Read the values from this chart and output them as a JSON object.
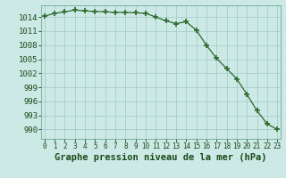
{
  "x": [
    0,
    1,
    2,
    3,
    4,
    5,
    6,
    7,
    8,
    9,
    10,
    11,
    12,
    13,
    14,
    15,
    16,
    17,
    18,
    19,
    20,
    21,
    22,
    23
  ],
  "y": [
    1014.2,
    1014.8,
    1015.1,
    1015.5,
    1015.3,
    1015.2,
    1015.1,
    1015.0,
    1015.0,
    1014.9,
    1014.8,
    1014.0,
    1013.2,
    1012.6,
    1013.0,
    1011.2,
    1008.0,
    1005.2,
    1003.0,
    1000.8,
    997.5,
    994.0,
    991.2,
    990.0
  ],
  "line_color": "#2d6a2d",
  "marker_color": "#2d6a2d",
  "bg_color": "#cce9e5",
  "grid_color": "#a0c8c4",
  "title": "Graphe pression niveau de la mer (hPa)",
  "yticks": [
    990,
    993,
    996,
    999,
    1002,
    1005,
    1008,
    1011,
    1014
  ],
  "ylim": [
    988.0,
    1016.5
  ],
  "xlim": [
    -0.3,
    23.3
  ],
  "xticks": [
    0,
    1,
    2,
    3,
    4,
    5,
    6,
    7,
    8,
    9,
    10,
    11,
    12,
    13,
    14,
    15,
    16,
    17,
    18,
    19,
    20,
    21,
    22,
    23
  ],
  "xtick_labels": [
    "0",
    "1",
    "2",
    "3",
    "4",
    "5",
    "6",
    "7",
    "8",
    "9",
    "10",
    "11",
    "12",
    "13",
    "14",
    "15",
    "16",
    "17",
    "18",
    "19",
    "20",
    "21",
    "22",
    "23"
  ],
  "title_fontsize": 7.5,
  "ytick_fontsize": 6.5,
  "xtick_fontsize": 5.5,
  "title_color": "#1a4a1a",
  "tick_color": "#1a4a1a",
  "spine_color": "#6aaa99"
}
